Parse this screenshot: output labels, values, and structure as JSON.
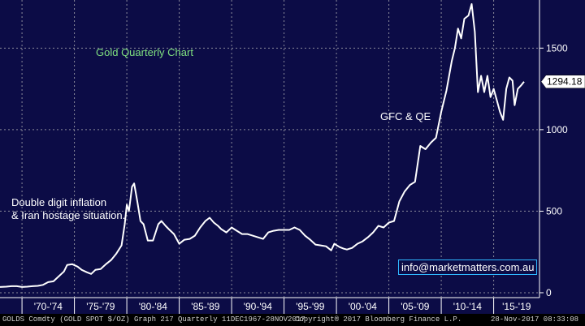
{
  "chart_data": {
    "type": "line",
    "title": "Gold Quarterly Chart",
    "x_range": [
      1967.9,
      2017.9
    ],
    "ylim": [
      -30,
      1795
    ],
    "y_ticks": [
      "0",
      "500",
      "1000",
      "1500"
    ],
    "x_tick_labels": [
      "'70-'74",
      "'75-'79",
      "'80-'84",
      "'85-'89",
      "'90-'94",
      "'95-'99",
      "'00-'04",
      "'05-'09",
      "'10-'14",
      "'15-'19"
    ],
    "last_value": "1294.18",
    "annotations": [
      "Double digit inflation",
      "& Iran hostage situation.",
      "GFC & QE"
    ],
    "series": [
      {
        "values": [
          [
            1967.9,
            35
          ],
          [
            1968.5,
            37
          ],
          [
            1969.0,
            40
          ],
          [
            1969.5,
            40
          ],
          [
            1970.0,
            35
          ],
          [
            1970.5,
            37
          ],
          [
            1971.0,
            40
          ],
          [
            1971.5,
            42
          ],
          [
            1972.0,
            48
          ],
          [
            1972.5,
            65
          ],
          [
            1973.0,
            70
          ],
          [
            1973.5,
            100
          ],
          [
            1974.0,
            130
          ],
          [
            1974.3,
            170
          ],
          [
            1974.8,
            175
          ],
          [
            1975.3,
            160
          ],
          [
            1975.7,
            140
          ],
          [
            1976.2,
            125
          ],
          [
            1976.6,
            115
          ],
          [
            1977.0,
            140
          ],
          [
            1977.5,
            145
          ],
          [
            1978.0,
            175
          ],
          [
            1978.5,
            200
          ],
          [
            1979.0,
            240
          ],
          [
            1979.5,
            290
          ],
          [
            1979.8,
            420
          ],
          [
            1980.0,
            540
          ],
          [
            1980.2,
            500
          ],
          [
            1980.5,
            650
          ],
          [
            1980.7,
            670
          ],
          [
            1981.0,
            560
          ],
          [
            1981.3,
            440
          ],
          [
            1981.6,
            420
          ],
          [
            1982.0,
            320
          ],
          [
            1982.5,
            320
          ],
          [
            1983.0,
            420
          ],
          [
            1983.3,
            440
          ],
          [
            1983.7,
            410
          ],
          [
            1984.0,
            390
          ],
          [
            1984.5,
            360
          ],
          [
            1985.0,
            300
          ],
          [
            1985.5,
            325
          ],
          [
            1986.0,
            330
          ],
          [
            1986.5,
            350
          ],
          [
            1987.0,
            400
          ],
          [
            1987.5,
            440
          ],
          [
            1987.9,
            460
          ],
          [
            1988.3,
            430
          ],
          [
            1988.7,
            410
          ],
          [
            1989.0,
            390
          ],
          [
            1989.5,
            370
          ],
          [
            1990.0,
            400
          ],
          [
            1990.5,
            380
          ],
          [
            1991.0,
            360
          ],
          [
            1991.5,
            360
          ],
          [
            1992.0,
            350
          ],
          [
            1992.5,
            340
          ],
          [
            1993.0,
            330
          ],
          [
            1993.5,
            370
          ],
          [
            1994.0,
            380
          ],
          [
            1994.5,
            385
          ],
          [
            1995.0,
            385
          ],
          [
            1995.5,
            385
          ],
          [
            1996.0,
            400
          ],
          [
            1996.5,
            385
          ],
          [
            1997.0,
            350
          ],
          [
            1997.5,
            325
          ],
          [
            1998.0,
            295
          ],
          [
            1998.5,
            290
          ],
          [
            1999.0,
            285
          ],
          [
            1999.5,
            260
          ],
          [
            1999.8,
            300
          ],
          [
            2000.3,
            280
          ],
          [
            2000.7,
            270
          ],
          [
            2001.0,
            265
          ],
          [
            2001.5,
            275
          ],
          [
            2002.0,
            300
          ],
          [
            2002.5,
            315
          ],
          [
            2003.0,
            340
          ],
          [
            2003.5,
            370
          ],
          [
            2004.0,
            410
          ],
          [
            2004.5,
            400
          ],
          [
            2005.0,
            430
          ],
          [
            2005.5,
            440
          ],
          [
            2006.0,
            560
          ],
          [
            2006.5,
            620
          ],
          [
            2007.0,
            660
          ],
          [
            2007.5,
            680
          ],
          [
            2008.0,
            900
          ],
          [
            2008.5,
            880
          ],
          [
            2009.0,
            920
          ],
          [
            2009.5,
            950
          ],
          [
            2010.0,
            1110
          ],
          [
            2010.5,
            1240
          ],
          [
            2011.0,
            1420
          ],
          [
            2011.3,
            1500
          ],
          [
            2011.6,
            1620
          ],
          [
            2011.9,
            1560
          ],
          [
            2012.2,
            1680
          ],
          [
            2012.6,
            1700
          ],
          [
            2012.9,
            1770
          ],
          [
            2013.2,
            1600
          ],
          [
            2013.5,
            1230
          ],
          [
            2013.8,
            1330
          ],
          [
            2014.1,
            1230
          ],
          [
            2014.4,
            1330
          ],
          [
            2014.7,
            1200
          ],
          [
            2015.0,
            1250
          ],
          [
            2015.3,
            1180
          ],
          [
            2015.6,
            1110
          ],
          [
            2015.9,
            1060
          ],
          [
            2016.2,
            1250
          ],
          [
            2016.5,
            1320
          ],
          [
            2016.8,
            1300
          ],
          [
            2017.0,
            1150
          ],
          [
            2017.3,
            1250
          ],
          [
            2017.6,
            1270
          ],
          [
            2017.9,
            1294.18
          ]
        ]
      }
    ]
  },
  "labels": {
    "title": "Gold Quarterly Chart",
    "annotation_1_line_1": "Double digit inflation",
    "annotation_1_line_2": "& Iran hostage situation.",
    "annotation_2": "GFC & QE",
    "email": "info@marketmatters.com.au",
    "last_value": "1294.18"
  },
  "footer": {
    "left": "GOLDS Comdty (GOLD SPOT $/OZ) Graph 217  Quarterly 11DEC1967-28NOV2017",
    "middle": "Copyright® 2017 Bloomberg Finance L.P.",
    "right": "28-Nov-2017 08:33:08"
  },
  "colors": {
    "background": "#0c0c46",
    "line": "#ffffff",
    "title": "#7fe07f",
    "gridline": "#8a8a9a",
    "email_border": "#2fb8ff",
    "footer_bg": "#000000"
  }
}
